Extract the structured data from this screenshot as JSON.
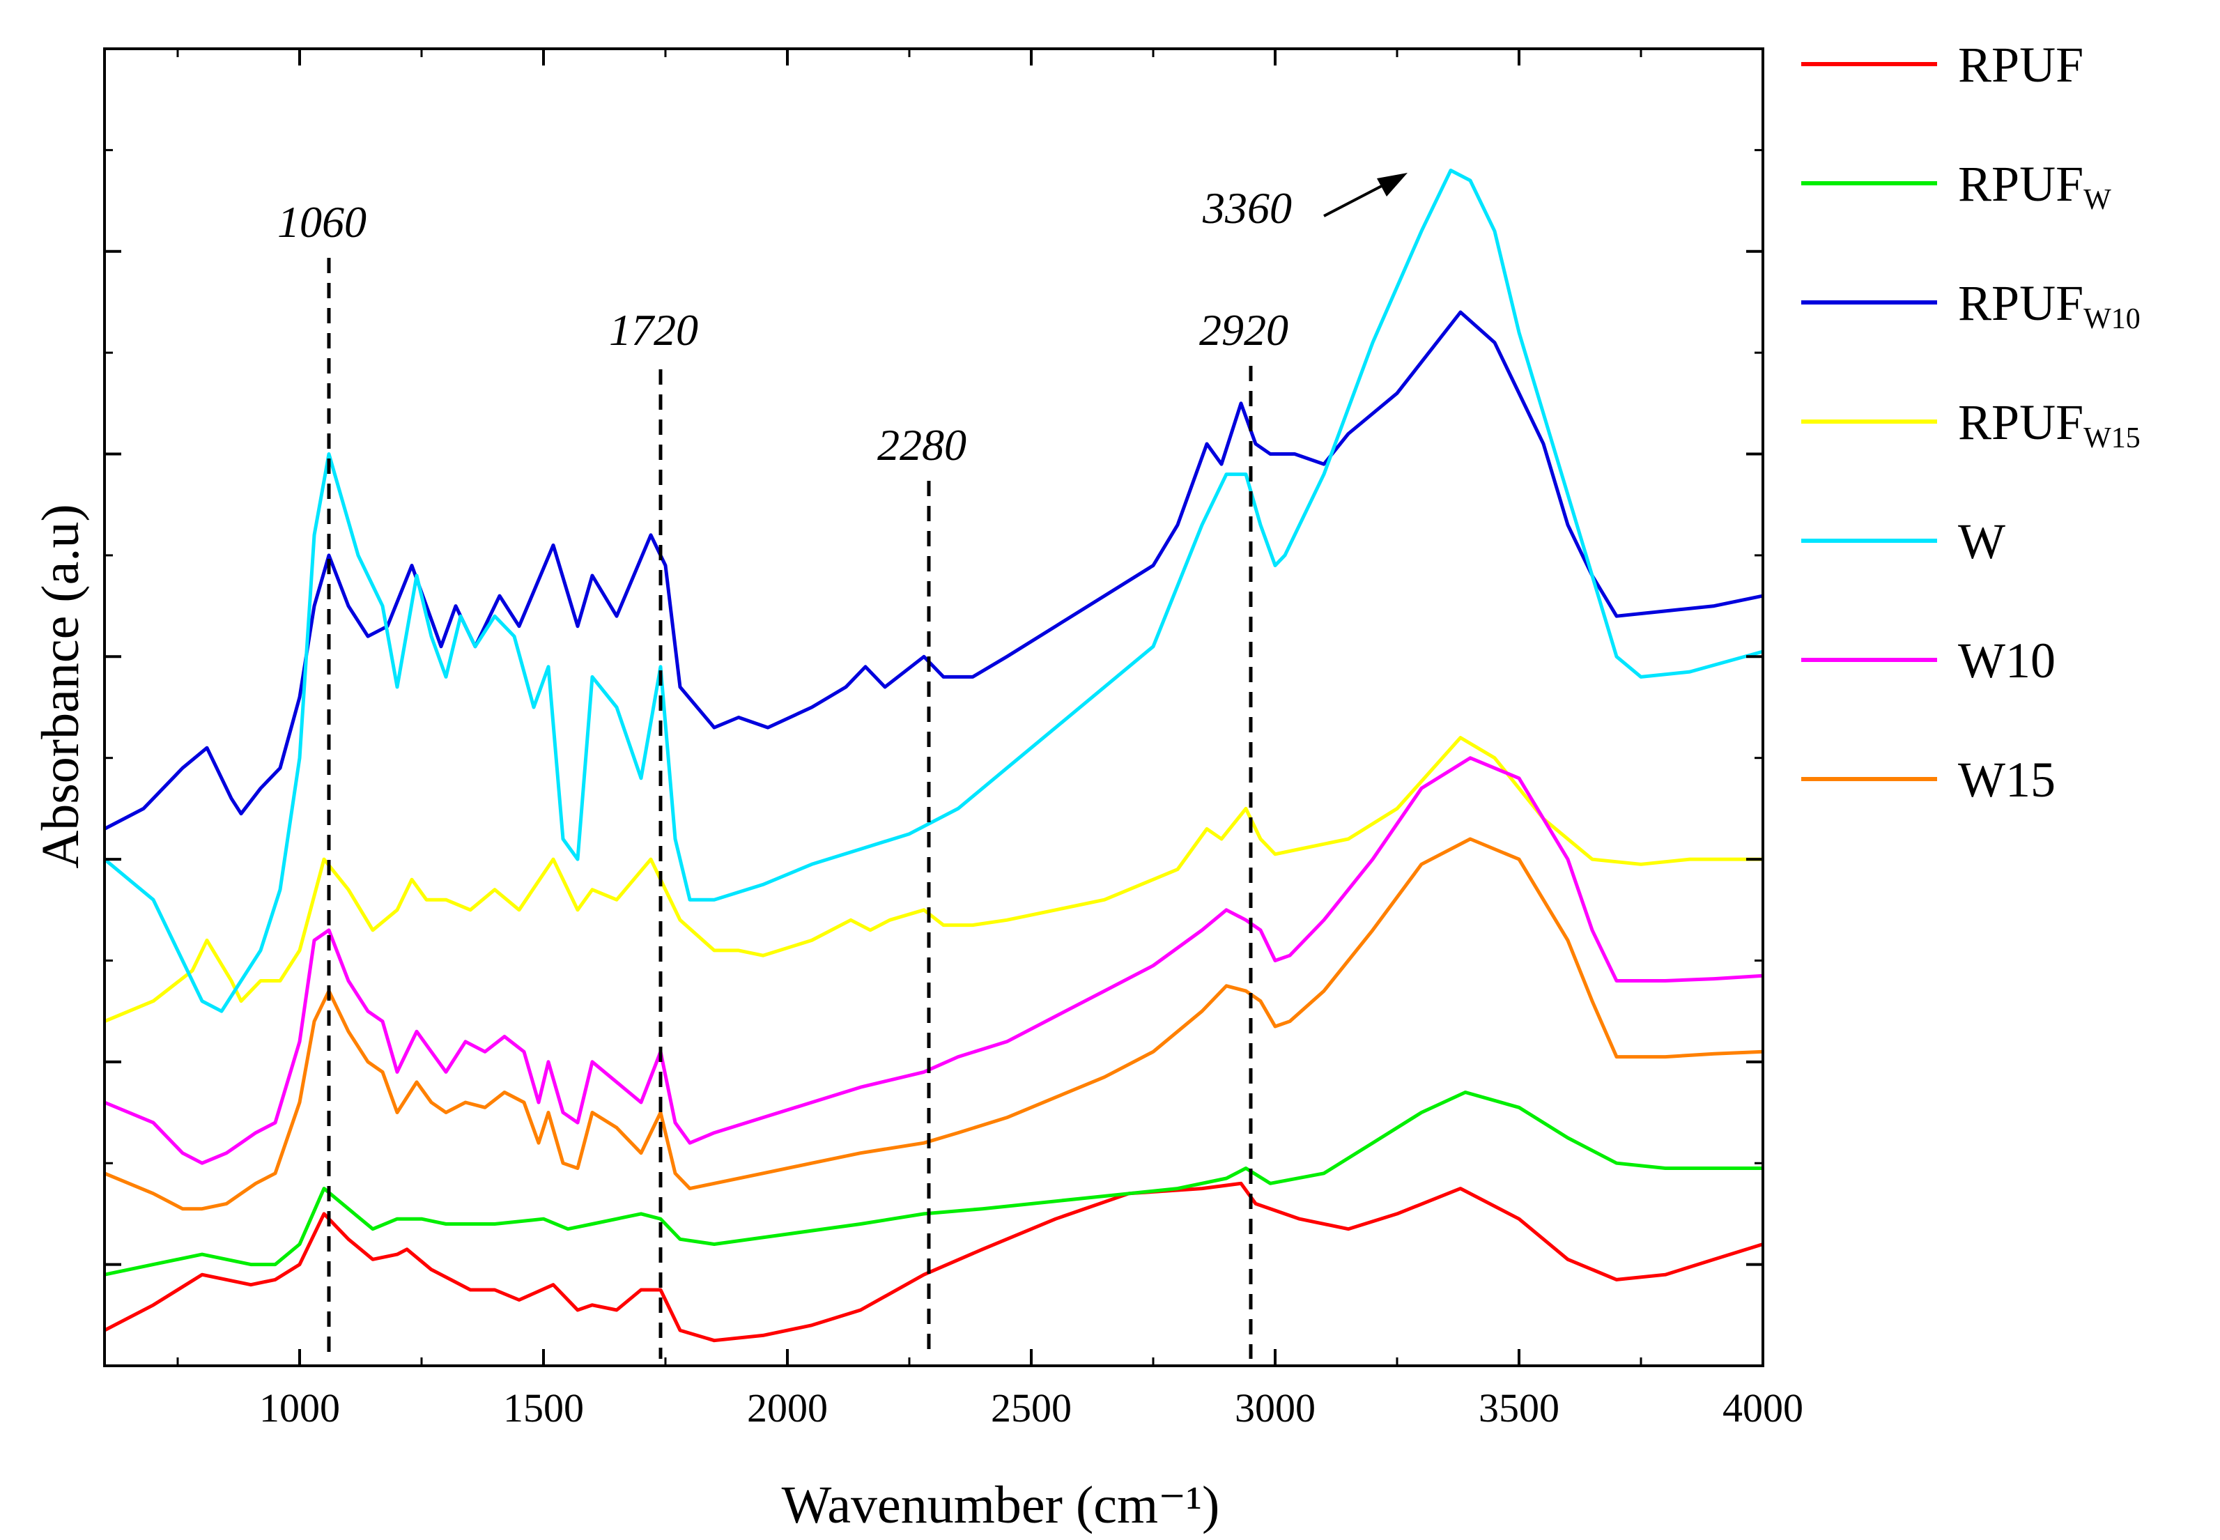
{
  "chart_data": {
    "type": "line",
    "title": "",
    "xlabel": "Wavenumber (cm⁻¹)",
    "ylabel": "Absorbance (a.u)",
    "xlim": [
      600,
      4000
    ],
    "ylim": [
      0,
      13
    ],
    "x_ticks": [
      1000,
      1500,
      2000,
      2500,
      3000,
      3500,
      4000
    ],
    "x_tick_labels": [
      "1000",
      "1500",
      "2000",
      "2500",
      "3000",
      "3500",
      "4000"
    ],
    "y_tick_labels_shown": false,
    "grid": false,
    "legend_position": "right",
    "legend": [
      {
        "base": "RPUF",
        "sub": "",
        "color": "#ff0000"
      },
      {
        "base": "RPUF",
        "sub": "W",
        "color": "#00ee00"
      },
      {
        "base": "RPUF",
        "sub": "W10",
        "color": "#0000dd"
      },
      {
        "base": "RPUF",
        "sub": "W15",
        "color": "#ffff00"
      },
      {
        "base": "W",
        "sub": "",
        "color": "#00e5ff"
      },
      {
        "base": "W10",
        "sub": "",
        "color": "#ff00ff"
      },
      {
        "base": "W15",
        "sub": "",
        "color": "#ff8000"
      }
    ],
    "annotations": [
      {
        "text": "1060",
        "x": 1060,
        "line": true
      },
      {
        "text": "1720",
        "x": 1740,
        "line": true
      },
      {
        "text": "2280",
        "x": 2290,
        "line": true
      },
      {
        "text": "2920",
        "x": 2950,
        "line": true
      },
      {
        "text": "3360",
        "x": 3360,
        "line": false,
        "arrow": true
      }
    ],
    "series": [
      {
        "name": "RPUF",
        "color": "#ff0000",
        "x": [
          600,
          700,
          800,
          900,
          950,
          1000,
          1050,
          1100,
          1150,
          1200,
          1220,
          1270,
          1310,
          1350,
          1400,
          1450,
          1520,
          1570,
          1600,
          1650,
          1700,
          1740,
          1780,
          1850,
          1950,
          2050,
          2150,
          2280,
          2400,
          2550,
          2700,
          2850,
          2930,
          2960,
          3050,
          3150,
          3250,
          3380,
          3500,
          3600,
          3700,
          3800,
          3900,
          4000
        ],
        "y": [
          0.35,
          0.6,
          0.9,
          0.8,
          0.85,
          1.0,
          1.5,
          1.25,
          1.05,
          1.1,
          1.15,
          0.95,
          0.85,
          0.75,
          0.75,
          0.65,
          0.8,
          0.55,
          0.6,
          0.55,
          0.75,
          0.75,
          0.35,
          0.25,
          0.3,
          0.4,
          0.55,
          0.9,
          1.15,
          1.45,
          1.7,
          1.75,
          1.8,
          1.6,
          1.45,
          1.35,
          1.5,
          1.75,
          1.45,
          1.05,
          0.85,
          0.9,
          1.05,
          1.2
        ]
      },
      {
        "name": "RPUF W",
        "color": "#00ee00",
        "x": [
          600,
          700,
          800,
          900,
          950,
          1000,
          1050,
          1100,
          1150,
          1200,
          1250,
          1300,
          1400,
          1500,
          1550,
          1600,
          1700,
          1740,
          1780,
          1850,
          2000,
          2150,
          2280,
          2400,
          2600,
          2800,
          2900,
          2940,
          2990,
          3100,
          3200,
          3300,
          3390,
          3500,
          3600,
          3700,
          3800,
          3900,
          4000
        ],
        "y": [
          0.9,
          1.0,
          1.1,
          1.0,
          1.0,
          1.2,
          1.75,
          1.55,
          1.35,
          1.45,
          1.45,
          1.4,
          1.4,
          1.45,
          1.35,
          1.4,
          1.5,
          1.45,
          1.25,
          1.2,
          1.3,
          1.4,
          1.5,
          1.55,
          1.65,
          1.75,
          1.85,
          1.95,
          1.8,
          1.9,
          2.2,
          2.5,
          2.7,
          2.55,
          2.25,
          2.0,
          1.95,
          1.95,
          1.95
        ]
      },
      {
        "name": "RPUF W10",
        "color": "#0000dd",
        "x": [
          600,
          680,
          760,
          810,
          860,
          880,
          920,
          960,
          1000,
          1030,
          1060,
          1100,
          1140,
          1180,
          1230,
          1260,
          1290,
          1320,
          1360,
          1410,
          1450,
          1520,
          1570,
          1600,
          1650,
          1720,
          1750,
          1780,
          1850,
          1900,
          1960,
          2050,
          2120,
          2160,
          2200,
          2280,
          2320,
          2380,
          2450,
          2550,
          2650,
          2750,
          2800,
          2860,
          2890,
          2930,
          2960,
          2990,
          3040,
          3100,
          3150,
          3250,
          3380,
          3450,
          3550,
          3600,
          3650,
          3700,
          3800,
          3900,
          4000
        ],
        "y": [
          5.3,
          5.5,
          5.9,
          6.1,
          5.6,
          5.45,
          5.7,
          5.9,
          6.6,
          7.5,
          8.0,
          7.5,
          7.2,
          7.3,
          7.9,
          7.5,
          7.1,
          7.5,
          7.1,
          7.6,
          7.3,
          8.1,
          7.3,
          7.8,
          7.4,
          8.2,
          7.9,
          6.7,
          6.3,
          6.4,
          6.3,
          6.5,
          6.7,
          6.9,
          6.7,
          7.0,
          6.8,
          6.8,
          7.0,
          7.3,
          7.6,
          7.9,
          8.3,
          9.1,
          8.9,
          9.5,
          9.1,
          9.0,
          9.0,
          8.9,
          9.2,
          9.6,
          10.4,
          10.1,
          9.1,
          8.3,
          7.8,
          7.4,
          7.45,
          7.5,
          7.6
        ]
      },
      {
        "name": "RPUF W15",
        "color": "#ffff00",
        "x": [
          600,
          700,
          780,
          810,
          860,
          880,
          920,
          960,
          1000,
          1050,
          1100,
          1150,
          1200,
          1230,
          1260,
          1300,
          1350,
          1400,
          1450,
          1520,
          1570,
          1600,
          1650,
          1720,
          1750,
          1780,
          1850,
          1900,
          1950,
          2050,
          2130,
          2170,
          2210,
          2280,
          2320,
          2380,
          2450,
          2550,
          2650,
          2800,
          2860,
          2890,
          2940,
          2970,
          3000,
          3050,
          3150,
          3250,
          3380,
          3450,
          3550,
          3650,
          3750,
          3850,
          4000
        ],
        "y": [
          3.4,
          3.6,
          3.9,
          4.2,
          3.8,
          3.6,
          3.8,
          3.8,
          4.1,
          5.0,
          4.7,
          4.3,
          4.5,
          4.8,
          4.6,
          4.6,
          4.5,
          4.7,
          4.5,
          5.0,
          4.5,
          4.7,
          4.6,
          5.0,
          4.7,
          4.4,
          4.1,
          4.1,
          4.05,
          4.2,
          4.4,
          4.3,
          4.4,
          4.5,
          4.35,
          4.35,
          4.4,
          4.5,
          4.6,
          4.9,
          5.3,
          5.2,
          5.5,
          5.2,
          5.05,
          5.1,
          5.2,
          5.5,
          6.2,
          6.0,
          5.4,
          5.0,
          4.95,
          5.0,
          5.0
        ]
      },
      {
        "name": "W",
        "color": "#00e5ff",
        "x": [
          600,
          650,
          700,
          760,
          800,
          840,
          880,
          920,
          960,
          1000,
          1030,
          1060,
          1090,
          1120,
          1150,
          1170,
          1200,
          1240,
          1270,
          1300,
          1330,
          1360,
          1400,
          1440,
          1480,
          1510,
          1540,
          1570,
          1600,
          1650,
          1700,
          1740,
          1770,
          1800,
          1850,
          1950,
          2050,
          2150,
          2250,
          2350,
          2450,
          2550,
          2650,
          2750,
          2850,
          2900,
          2940,
          2970,
          3000,
          3020,
          3100,
          3200,
          3300,
          3360,
          3400,
          3450,
          3500,
          3600,
          3650,
          3700,
          3750,
          3850,
          4000
        ],
        "y": [
          5.0,
          4.8,
          4.6,
          4.0,
          3.6,
          3.5,
          3.8,
          4.1,
          4.7,
          6.0,
          8.2,
          9.0,
          8.5,
          8.0,
          7.7,
          7.5,
          6.7,
          7.8,
          7.2,
          6.8,
          7.4,
          7.1,
          7.4,
          7.2,
          6.5,
          6.9,
          5.2,
          5.0,
          6.8,
          6.5,
          5.8,
          6.9,
          5.2,
          4.6,
          4.6,
          4.75,
          4.95,
          5.1,
          5.25,
          5.5,
          5.9,
          6.3,
          6.7,
          7.1,
          8.3,
          8.8,
          8.8,
          8.3,
          7.9,
          8.0,
          8.8,
          10.1,
          11.2,
          11.8,
          11.7,
          11.2,
          10.2,
          8.6,
          7.8,
          7.0,
          6.8,
          6.85,
          7.05
        ]
      },
      {
        "name": "W10",
        "color": "#ff00ff",
        "x": [
          600,
          700,
          760,
          800,
          850,
          880,
          910,
          950,
          1000,
          1030,
          1060,
          1100,
          1140,
          1170,
          1200,
          1240,
          1270,
          1300,
          1340,
          1380,
          1420,
          1460,
          1490,
          1510,
          1540,
          1570,
          1600,
          1650,
          1700,
          1740,
          1770,
          1800,
          1850,
          1950,
          2050,
          2150,
          2280,
          2350,
          2450,
          2550,
          2650,
          2750,
          2850,
          2900,
          2940,
          2970,
          3000,
          3030,
          3100,
          3200,
          3300,
          3400,
          3500,
          3600,
          3650,
          3700,
          3800,
          3900,
          4000
        ],
        "y": [
          2.6,
          2.4,
          2.1,
          2.0,
          2.1,
          2.2,
          2.3,
          2.4,
          3.2,
          4.2,
          4.3,
          3.8,
          3.5,
          3.4,
          2.9,
          3.3,
          3.1,
          2.9,
          3.2,
          3.1,
          3.25,
          3.1,
          2.6,
          3.0,
          2.5,
          2.4,
          3.0,
          2.8,
          2.6,
          3.1,
          2.4,
          2.2,
          2.3,
          2.45,
          2.6,
          2.75,
          2.9,
          3.05,
          3.2,
          3.45,
          3.7,
          3.95,
          4.3,
          4.5,
          4.4,
          4.3,
          4.0,
          4.05,
          4.4,
          5.0,
          5.7,
          6.0,
          5.8,
          5.0,
          4.3,
          3.8,
          3.8,
          3.82,
          3.85
        ]
      },
      {
        "name": "W15",
        "color": "#ff8000",
        "x": [
          600,
          700,
          760,
          800,
          850,
          880,
          910,
          950,
          1000,
          1030,
          1060,
          1100,
          1140,
          1170,
          1200,
          1240,
          1270,
          1300,
          1340,
          1380,
          1420,
          1460,
          1490,
          1510,
          1540,
          1570,
          1600,
          1650,
          1700,
          1740,
          1770,
          1800,
          1850,
          1950,
          2050,
          2150,
          2280,
          2350,
          2450,
          2550,
          2650,
          2750,
          2850,
          2900,
          2940,
          2970,
          3000,
          3030,
          3100,
          3200,
          3300,
          3400,
          3500,
          3600,
          3650,
          3700,
          3800,
          3900,
          4000
        ],
        "y": [
          1.9,
          1.7,
          1.55,
          1.55,
          1.6,
          1.7,
          1.8,
          1.9,
          2.6,
          3.4,
          3.7,
          3.3,
          3.0,
          2.9,
          2.5,
          2.8,
          2.6,
          2.5,
          2.6,
          2.55,
          2.7,
          2.6,
          2.2,
          2.5,
          2.0,
          1.95,
          2.5,
          2.35,
          2.1,
          2.5,
          1.9,
          1.75,
          1.8,
          1.9,
          2.0,
          2.1,
          2.2,
          2.3,
          2.45,
          2.65,
          2.85,
          3.1,
          3.5,
          3.75,
          3.7,
          3.6,
          3.35,
          3.4,
          3.7,
          4.3,
          4.95,
          5.2,
          5.0,
          4.2,
          3.6,
          3.05,
          3.05,
          3.08,
          3.1
        ]
      }
    ]
  }
}
